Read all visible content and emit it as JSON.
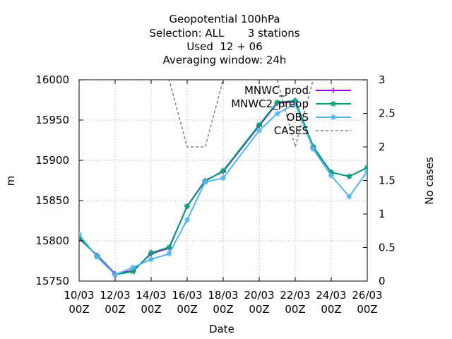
{
  "chart_data": {
    "type": "line",
    "title_lines": [
      "Geopotential 100hPa",
      "Selection: ALL       3 stations",
      "Used  12 + 06",
      "Averaging window: 24h"
    ],
    "xlabel": "Date",
    "ylabel": "m",
    "y2label": "No cases",
    "x_ticks": [
      {
        "v": 0,
        "l1": "10/03",
        "l2": "00Z"
      },
      {
        "v": 2,
        "l1": "12/03",
        "l2": "00Z"
      },
      {
        "v": 4,
        "l1": "14/03",
        "l2": "00Z"
      },
      {
        "v": 6,
        "l1": "16/03",
        "l2": "00Z"
      },
      {
        "v": 8,
        "l1": "18/03",
        "l2": "00Z"
      },
      {
        "v": 10,
        "l1": "20/03",
        "l2": "00Z"
      },
      {
        "v": 12,
        "l1": "22/03",
        "l2": "00Z"
      },
      {
        "v": 14,
        "l1": "24/03",
        "l2": "00Z"
      },
      {
        "v": 16,
        "l1": "26/03",
        "l2": "00Z"
      }
    ],
    "xlim": [
      0,
      16
    ],
    "ylim": [
      15750,
      16000
    ],
    "y_ticks": [
      "15750",
      "15800",
      "15850",
      "15900",
      "15950",
      "16000"
    ],
    "y2lim": [
      0,
      3
    ],
    "y2_ticks": [
      "0",
      "0.5",
      "1",
      "1.5",
      "2",
      "2.5",
      "3"
    ],
    "grid": true,
    "legend_position": "top-right",
    "series": [
      {
        "name": "MNWC_prod",
        "color": "#9400d3",
        "marker": "plus",
        "axis": "left",
        "x": [
          0,
          1,
          2,
          3,
          4,
          5,
          6,
          7,
          8,
          10,
          11,
          12,
          13,
          14,
          15,
          16
        ],
        "values": [
          15803,
          15782,
          15759,
          15763,
          15784,
          15791,
          15843,
          15875,
          15886,
          15943,
          15971,
          15973,
          15916,
          15885,
          15880,
          15891
        ]
      },
      {
        "name": "MNWC2_preop",
        "color": "#009e73",
        "marker": "star",
        "axis": "left",
        "x": [
          0,
          1,
          2,
          3,
          4,
          5,
          6,
          7,
          8,
          10,
          11,
          12,
          13,
          14,
          15,
          16
        ],
        "values": [
          15804,
          15781,
          15758,
          15762,
          15785,
          15792,
          15843,
          15874,
          15887,
          15944,
          15972,
          15974,
          15917,
          15885,
          15880,
          15891
        ]
      },
      {
        "name": "OBS",
        "color": "#56b4e9",
        "marker": "star",
        "axis": "left",
        "x": [
          0,
          1,
          2,
          3,
          4,
          5,
          6,
          7,
          8,
          10,
          11,
          12,
          13,
          14,
          15,
          16
        ],
        "values": [
          15808,
          15780,
          15758,
          15767,
          15777,
          15784,
          15826,
          15873,
          15878,
          15937,
          15958,
          15970,
          15914,
          15881,
          15855,
          15886
        ]
      },
      {
        "name": "CASES",
        "color": "#808080",
        "dash": true,
        "axis": "right",
        "x": [
          0,
          5,
          6,
          7,
          8,
          11,
          12,
          13,
          14,
          15,
          16
        ],
        "values": [
          3,
          3,
          2,
          2,
          3,
          3,
          2,
          3,
          3,
          3,
          3
        ]
      }
    ]
  }
}
